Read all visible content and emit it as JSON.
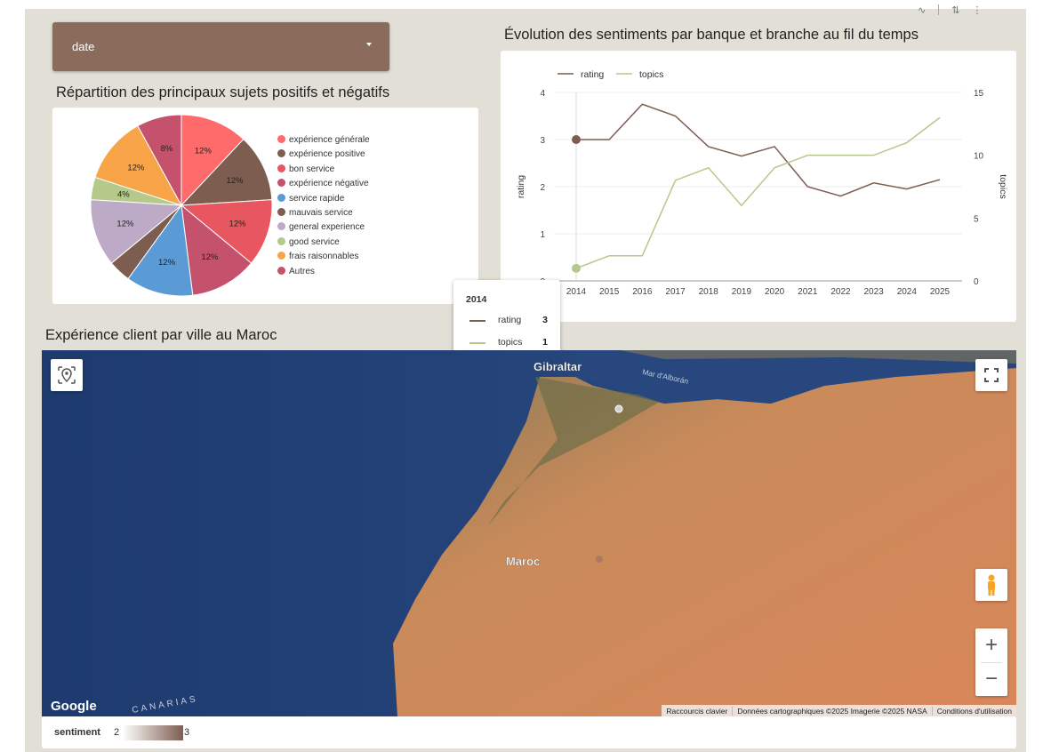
{
  "filter": {
    "label": "date"
  },
  "pie": {
    "title": "Répartition des principaux sujets positifs et négatifs",
    "colors": {
      "experience_generale": "#ff6b6b",
      "experience_positive": "#7d5d50",
      "bon_service": "#e8575f",
      "experience_negative": "#c4526c",
      "service_rapide": "#5b9bd5",
      "mauvais_service": "#7d5d50",
      "general_experience": "#bcaac7",
      "good_service": "#b5c98a",
      "frais_raisonnables": "#f8a54a",
      "autres": "#c4526c"
    }
  },
  "chart_data": [
    {
      "type": "pie",
      "title": "Répartition des principaux sujets positifs et négatifs",
      "slices": [
        {
          "label": "expérience générale",
          "value": 12,
          "display": "12%"
        },
        {
          "label": "expérience positive",
          "value": 12,
          "display": "12%"
        },
        {
          "label": "bon service",
          "value": 12,
          "display": "12%"
        },
        {
          "label": "expérience négative",
          "value": 12,
          "display": "12%"
        },
        {
          "label": "service rapide",
          "value": 12,
          "display": "12%"
        },
        {
          "label": "mauvais service",
          "value": 4,
          "display": ""
        },
        {
          "label": "general experience",
          "value": 12,
          "display": "12%"
        },
        {
          "label": "good service",
          "value": 4,
          "display": "4%"
        },
        {
          "label": "frais raisonnables",
          "value": 12,
          "display": "12%"
        },
        {
          "label": "Autres",
          "value": 8,
          "display": "8%"
        }
      ],
      "legend_position": "right"
    },
    {
      "type": "line",
      "title": "Évolution des sentiments par banque et branche au fil du temps",
      "x": [
        2014,
        2015,
        2016,
        2017,
        2018,
        2019,
        2020,
        2021,
        2022,
        2023,
        2024,
        2025
      ],
      "series": [
        {
          "name": "rating",
          "axis": "left",
          "color": "#7d5d50",
          "values": [
            3,
            3,
            3.75,
            3.5,
            2.85,
            2.65,
            2.85,
            2.0,
            1.8,
            2.08,
            1.95,
            2.15
          ]
        },
        {
          "name": "topics",
          "axis": "right",
          "color": "#b5c98a",
          "values": [
            1,
            2,
            2,
            8,
            9,
            6,
            9,
            10,
            10,
            10,
            11,
            13
          ]
        }
      ],
      "ylabel": "rating",
      "y2label": "topics",
      "ylim": [
        0,
        4
      ],
      "y2lim": [
        0,
        15
      ],
      "yticks": [
        0,
        1,
        2,
        3,
        4
      ],
      "y2ticks": [
        0,
        5,
        10,
        15
      ],
      "legend_position": "top-left",
      "grid": true
    }
  ],
  "line": {
    "title": "Évolution des sentiments par banque et branche au fil du temps",
    "legend_rating": "rating",
    "legend_topics": "topics",
    "ylabel": "rating",
    "y2label": "topics"
  },
  "tooltip": {
    "title": "2014",
    "rating_label": "rating",
    "rating_value": "3",
    "topics_label": "topics",
    "topics_value": "1"
  },
  "map": {
    "title": "Expérience client par ville au Maroc",
    "label_gibraltar": "Gibraltar",
    "label_sea": "Mar d'Alborán",
    "label_maroc": "Maroc",
    "label_canarias": "CANARIAS",
    "google": "Google",
    "attrib_keyboard": "Raccourcis clavier",
    "attrib_data": "Données cartographiques ©2025 Imagerie ©2025 NASA",
    "attrib_terms": "Conditions d'utilisation",
    "zoom_in": "+",
    "zoom_out": "−"
  },
  "sentiment_legend": {
    "label": "sentiment",
    "min": "2",
    "max": "3",
    "color_min": "#ffffff",
    "color_max": "#7d5d50"
  }
}
